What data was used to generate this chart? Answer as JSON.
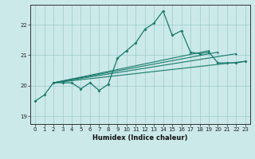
{
  "xlabel": "Humidex (Indice chaleur)",
  "xlim": [
    -0.5,
    23.5
  ],
  "ylim": [
    18.75,
    22.65
  ],
  "yticks": [
    19,
    20,
    21,
    22
  ],
  "xticks": [
    0,
    1,
    2,
    3,
    4,
    5,
    6,
    7,
    8,
    9,
    10,
    11,
    12,
    13,
    14,
    15,
    16,
    17,
    18,
    19,
    20,
    21,
    22,
    23
  ],
  "background_color": "#cce9e9",
  "grid_color": "#99cccc",
  "line_color": "#1a7a6a",
  "main_line": [
    19.5,
    19.7,
    20.1,
    20.1,
    20.1,
    19.9,
    20.1,
    19.85,
    20.05,
    20.9,
    21.15,
    21.4,
    21.85,
    22.05,
    22.45,
    21.65,
    21.8,
    21.1,
    21.05,
    21.1,
    20.75,
    20.75,
    20.75,
    20.8
  ],
  "straight_lines": [
    {
      "x": [
        2,
        23
      ],
      "y": [
        20.1,
        20.8
      ]
    },
    {
      "x": [
        2,
        23
      ],
      "y": [
        20.1,
        20.8
      ]
    },
    {
      "x": [
        2,
        22
      ],
      "y": [
        20.1,
        21.05
      ]
    },
    {
      "x": [
        2,
        20
      ],
      "y": [
        20.1,
        21.1
      ]
    }
  ]
}
